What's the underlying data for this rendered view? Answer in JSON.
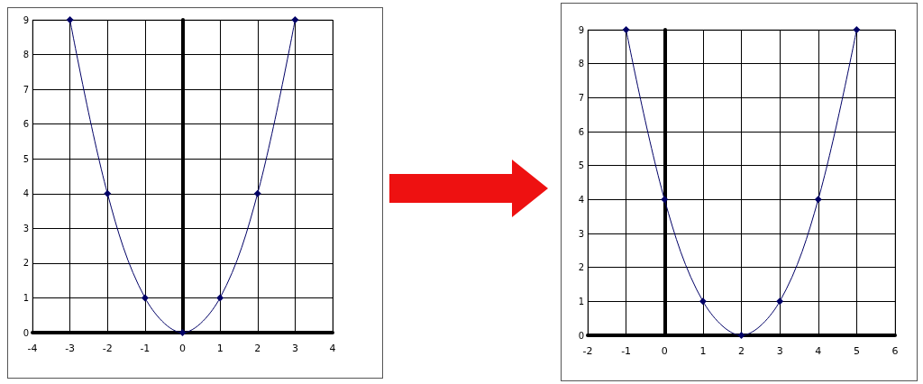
{
  "chart_data": [
    {
      "type": "line",
      "x": [
        -3,
        -2,
        -1,
        0,
        1,
        2,
        3
      ],
      "values": [
        9,
        4,
        1,
        0,
        1,
        4,
        9
      ],
      "color": "#000066",
      "xlim": [
        -4,
        4
      ],
      "xticks": [
        -4,
        -3,
        -2,
        -1,
        0,
        1,
        2,
        3,
        4
      ],
      "ylim": [
        0,
        9
      ],
      "yticks": [
        0,
        1,
        2,
        3,
        4,
        5,
        6,
        7,
        8,
        9
      ],
      "grid": true,
      "marker": "diamond"
    },
    {
      "type": "line",
      "x": [
        -1,
        0,
        1,
        2,
        3,
        4,
        5
      ],
      "values": [
        9,
        4,
        1,
        0,
        1,
        4,
        9
      ],
      "color": "#000066",
      "xlim": [
        -2,
        6
      ],
      "xticks": [
        -2,
        -1,
        0,
        1,
        2,
        3,
        4,
        5,
        6
      ],
      "ylim": [
        0,
        9
      ],
      "yticks": [
        0,
        1,
        2,
        3,
        4,
        5,
        6,
        7,
        8,
        9
      ],
      "grid": true,
      "marker": "diamond"
    }
  ]
}
